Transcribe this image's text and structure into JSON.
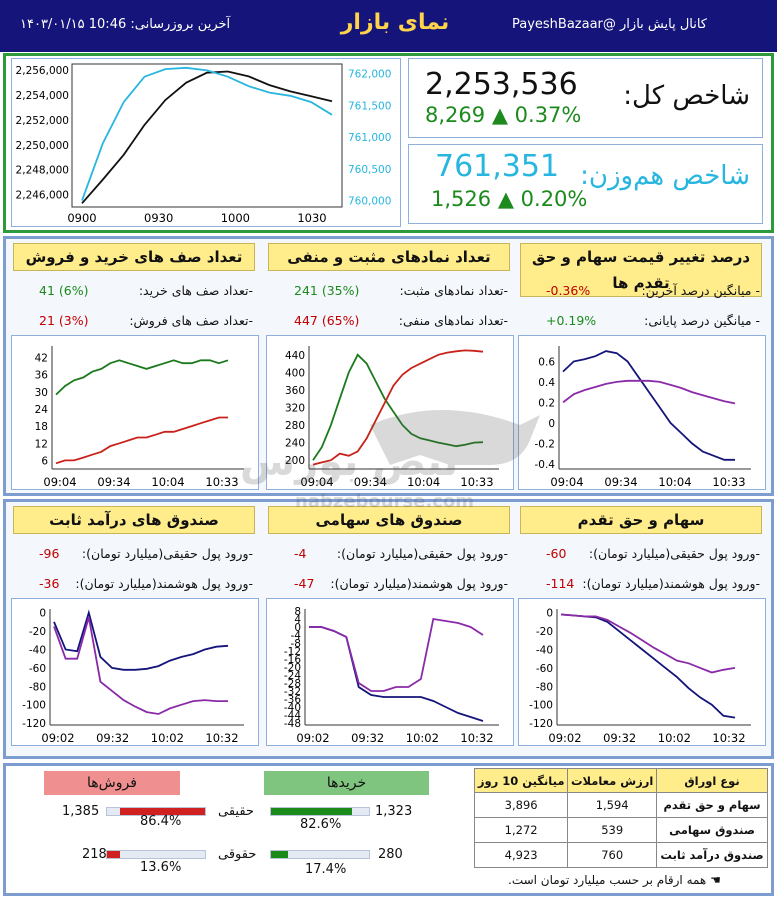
{
  "header": {
    "channel": "کانال پایش بازار",
    "handle": "@PayeshBazaar",
    "title": "نمای بازار",
    "update_label": "آخرین بروزرسانی: 10:46 ۱۴۰۳/۰۱/۱۵"
  },
  "overall": {
    "label": "شاخص کل:",
    "value": "2,253,536",
    "change": "8,269",
    "arrow": "▲",
    "pct": "0.37%"
  },
  "equal": {
    "label": "شاخص هم‌وزن:",
    "value": "761,351",
    "change": "1,526",
    "arrow": "▲",
    "pct": "0.20%"
  },
  "colors": {
    "accent_green": "#2e9a3c",
    "navy": "#14147a",
    "cyan": "#27b6e0",
    "red": "#c00000",
    "purple": "#8a2aa8"
  },
  "panels": {
    "queues": {
      "title": "تعداد صف های خرید و فروش",
      "r1_label": "-تعداد صف های خرید:",
      "r1_val": "41 (6%)",
      "r2_label": "-تعداد صف های فروش:",
      "r2_val": "21 (3%)"
    },
    "symbols": {
      "title": "تعداد نمادهای مثبت و منفی",
      "r1_label": "-تعداد نمادهای مثبت:",
      "r1_val": "241 (35%)",
      "r2_label": "-تعداد نمادهای منفی:",
      "r2_val": "447 (65%)"
    },
    "pricechg": {
      "title": "درصد تغییر قیمت سهام و حق تقدم ها",
      "r1_label": "- میانگین درصد آخرین:",
      "r1_val": "-0.36%",
      "r2_label": "- میانگین درصد پایانی:",
      "r2_val": "+0.19%"
    },
    "fixed": {
      "title": "صندوق های درآمد ثابت",
      "r1_label": "-ورود پول حقیقی(میلیارد تومان):",
      "r1_val": "-96",
      "r2_label": "-ورود پول هوشمند(میلیارد تومان):",
      "r2_val": "-36"
    },
    "equity": {
      "title": "صندوق های سهامی",
      "r1_label": "-ورود پول حقیقی(میلیارد تومان):",
      "r1_val": "-4",
      "r2_label": "-ورود پول هوشمند(میلیارد تومان):",
      "r2_val": "-47"
    },
    "stocks": {
      "title": "سهام و حق تقدم",
      "r1_label": "-ورود پول حقیقی(میلیارد تومان):",
      "r1_val": "-60",
      "r2_label": "-ورود پول هوشمند(میلیارد تومان):",
      "r2_val": "-114"
    }
  },
  "watermark": {
    "text": "nabzebourse.com"
  },
  "bottom": {
    "sells_title": "فروش‌ها",
    "buys_title": "خریدها",
    "hagh1": "حقیقی",
    "hagh2": "حقوقی",
    "sell_real_val": "1,385",
    "sell_real_pct": "86.4%",
    "sell_real_frac": 0.864,
    "sell_legal_val": "218",
    "sell_legal_pct": "13.6%",
    "sell_legal_frac": 0.136,
    "buy_real_val": "1,323",
    "buy_real_pct": "82.6%",
    "buy_real_frac": 0.826,
    "buy_legal_val": "280",
    "buy_legal_pct": "17.4%",
    "buy_legal_frac": 0.174,
    "table": {
      "headers": [
        "نوع اوراق",
        "ارزش معاملات",
        "میانگین 10 روز"
      ],
      "rows": [
        [
          "سهام و حق تقدم",
          "1,594",
          "3,896"
        ],
        [
          "صندوق سهامی",
          "539",
          "1,272"
        ],
        [
          "صندوق درآمد ثابت",
          "760",
          "4,923"
        ]
      ]
    },
    "note": "همه ارقام بر حسب میلیارد تومان است."
  },
  "chart_data": [
    {
      "type": "line",
      "x": [
        "0900",
        "0910",
        "0920",
        "0930",
        "0940",
        "0950",
        "1000",
        "1010",
        "1020",
        "1030",
        "1040",
        "1050",
        "1058"
      ],
      "ylim": [
        2245000,
        2256500
      ],
      "y2lim": [
        759900,
        762150
      ],
      "yticks": [
        "2,246,000",
        "2,248,000",
        "2,250,000",
        "2,252,000",
        "2,254,000",
        "2,256,000"
      ],
      "y2ticks": [
        "760,000",
        "760,500",
        "761,000",
        "761,500",
        "762,000"
      ],
      "xticks": [
        "0900",
        "0930",
        "1000",
        "1030"
      ],
      "series": [
        {
          "axis": "left",
          "color": "#111",
          "values": [
            2245300,
            2247200,
            2249200,
            2251600,
            2253600,
            2255000,
            2255800,
            2255900,
            2255500,
            2254800,
            2254300,
            2253900,
            2253500
          ]
        },
        {
          "axis": "right",
          "color": "#27b6e0",
          "values": [
            760000,
            760900,
            761550,
            761950,
            762070,
            762090,
            762050,
            761950,
            761800,
            761700,
            761650,
            761550,
            761350
          ]
        }
      ]
    },
    {
      "type": "line",
      "yticks": [
        6,
        12,
        18,
        24,
        30,
        36,
        42
      ],
      "ylim": [
        3,
        46
      ],
      "xticks": [
        "09:04",
        "09:34",
        "10:04",
        "10:33"
      ],
      "series": [
        {
          "color": "#1c7a1c",
          "values": [
            29,
            32,
            34,
            35,
            37,
            38,
            40,
            41,
            40,
            39,
            38,
            39,
            40,
            41,
            40,
            40,
            41,
            41,
            40,
            41
          ]
        },
        {
          "color": "#c8221a",
          "values": [
            5,
            6,
            6,
            7,
            8,
            9,
            11,
            12,
            13,
            14,
            14,
            15,
            16,
            16,
            17,
            18,
            19,
            20,
            21,
            21
          ]
        }
      ]
    },
    {
      "type": "line",
      "yticks": [
        200,
        240,
        280,
        320,
        360,
        400,
        440
      ],
      "ylim": [
        180,
        460
      ],
      "xticks": [
        "09:04",
        "09:34",
        "10:04",
        "10:33"
      ],
      "series": [
        {
          "color": "#1c7a1c",
          "values": [
            200,
            230,
            280,
            340,
            400,
            440,
            420,
            380,
            340,
            310,
            280,
            260,
            250,
            245,
            240,
            236,
            232,
            235,
            240,
            241
          ]
        },
        {
          "color": "#c8221a",
          "values": [
            190,
            195,
            200,
            215,
            210,
            220,
            250,
            290,
            330,
            370,
            395,
            410,
            420,
            430,
            440,
            445,
            448,
            450,
            449,
            447
          ]
        }
      ]
    },
    {
      "type": "line",
      "yticks": [
        -0.4,
        -0.2,
        0,
        0.2,
        0.4,
        0.6
      ],
      "ylim": [
        -0.45,
        0.75
      ],
      "xticks": [
        "09:04",
        "09:34",
        "10:04",
        "10:33"
      ],
      "series": [
        {
          "color": "#14147a",
          "values": [
            0.5,
            0.6,
            0.62,
            0.65,
            0.7,
            0.68,
            0.6,
            0.45,
            0.3,
            0.15,
            0.0,
            -0.1,
            -0.2,
            -0.28,
            -0.32,
            -0.36,
            -0.36
          ]
        },
        {
          "color": "#8a2aa8",
          "values": [
            0.2,
            0.28,
            0.32,
            0.35,
            0.38,
            0.4,
            0.41,
            0.41,
            0.41,
            0.4,
            0.37,
            0.34,
            0.3,
            0.27,
            0.24,
            0.21,
            0.19
          ]
        }
      ]
    },
    {
      "type": "line",
      "yticks": [
        0,
        -20,
        -40,
        -60,
        -80,
        -100,
        -120
      ],
      "ylim": [
        -122,
        4
      ],
      "xticks": [
        "09:02",
        "09:32",
        "10:02",
        "10:32"
      ],
      "series": [
        {
          "color": "#14147a",
          "values": [
            -10,
            -40,
            -42,
            0,
            -48,
            -60,
            -62,
            -62,
            -61,
            -58,
            -52,
            -48,
            -45,
            -40,
            -37,
            -36
          ]
        },
        {
          "color": "#8a2aa8",
          "values": [
            -15,
            -50,
            -50,
            -5,
            -75,
            -85,
            -95,
            -102,
            -108,
            -110,
            -104,
            -100,
            -96,
            -95,
            -96,
            -96
          ]
        }
      ]
    },
    {
      "type": "line",
      "yticks": [
        8,
        4,
        0,
        -4,
        -8,
        -12,
        -16,
        -20,
        -24,
        -28,
        -32,
        -36,
        -40,
        -44,
        -48
      ],
      "ylim": [
        -49,
        9
      ],
      "xticks": [
        "09:02",
        "09:32",
        "10:02",
        "10:32"
      ],
      "series": [
        {
          "color": "#14147a",
          "values": [
            0,
            0,
            -2,
            -5,
            -30,
            -34,
            -35,
            -35,
            -35,
            -35,
            -37,
            -40,
            -43,
            -45,
            -47
          ]
        },
        {
          "color": "#8a2aa8",
          "values": [
            0,
            0,
            -2,
            -5,
            -28,
            -32,
            -32,
            -30,
            -30,
            -26,
            4,
            3,
            2,
            0,
            -4
          ]
        }
      ]
    },
    {
      "type": "line",
      "yticks": [
        0,
        -20,
        -40,
        -60,
        -80,
        -100,
        -120
      ],
      "ylim": [
        -122,
        4
      ],
      "xticks": [
        "09:02",
        "09:32",
        "10:02",
        "10:32"
      ],
      "series": [
        {
          "color": "#14147a",
          "values": [
            -2,
            -3,
            -4,
            -5,
            -10,
            -20,
            -30,
            -40,
            -50,
            -60,
            -70,
            -82,
            -92,
            -100,
            -112,
            -114
          ]
        },
        {
          "color": "#8a2aa8",
          "values": [
            -2,
            -3,
            -4,
            -4,
            -8,
            -15,
            -22,
            -30,
            -38,
            -45,
            -52,
            -55,
            -60,
            -65,
            -62,
            -60
          ]
        }
      ]
    }
  ]
}
